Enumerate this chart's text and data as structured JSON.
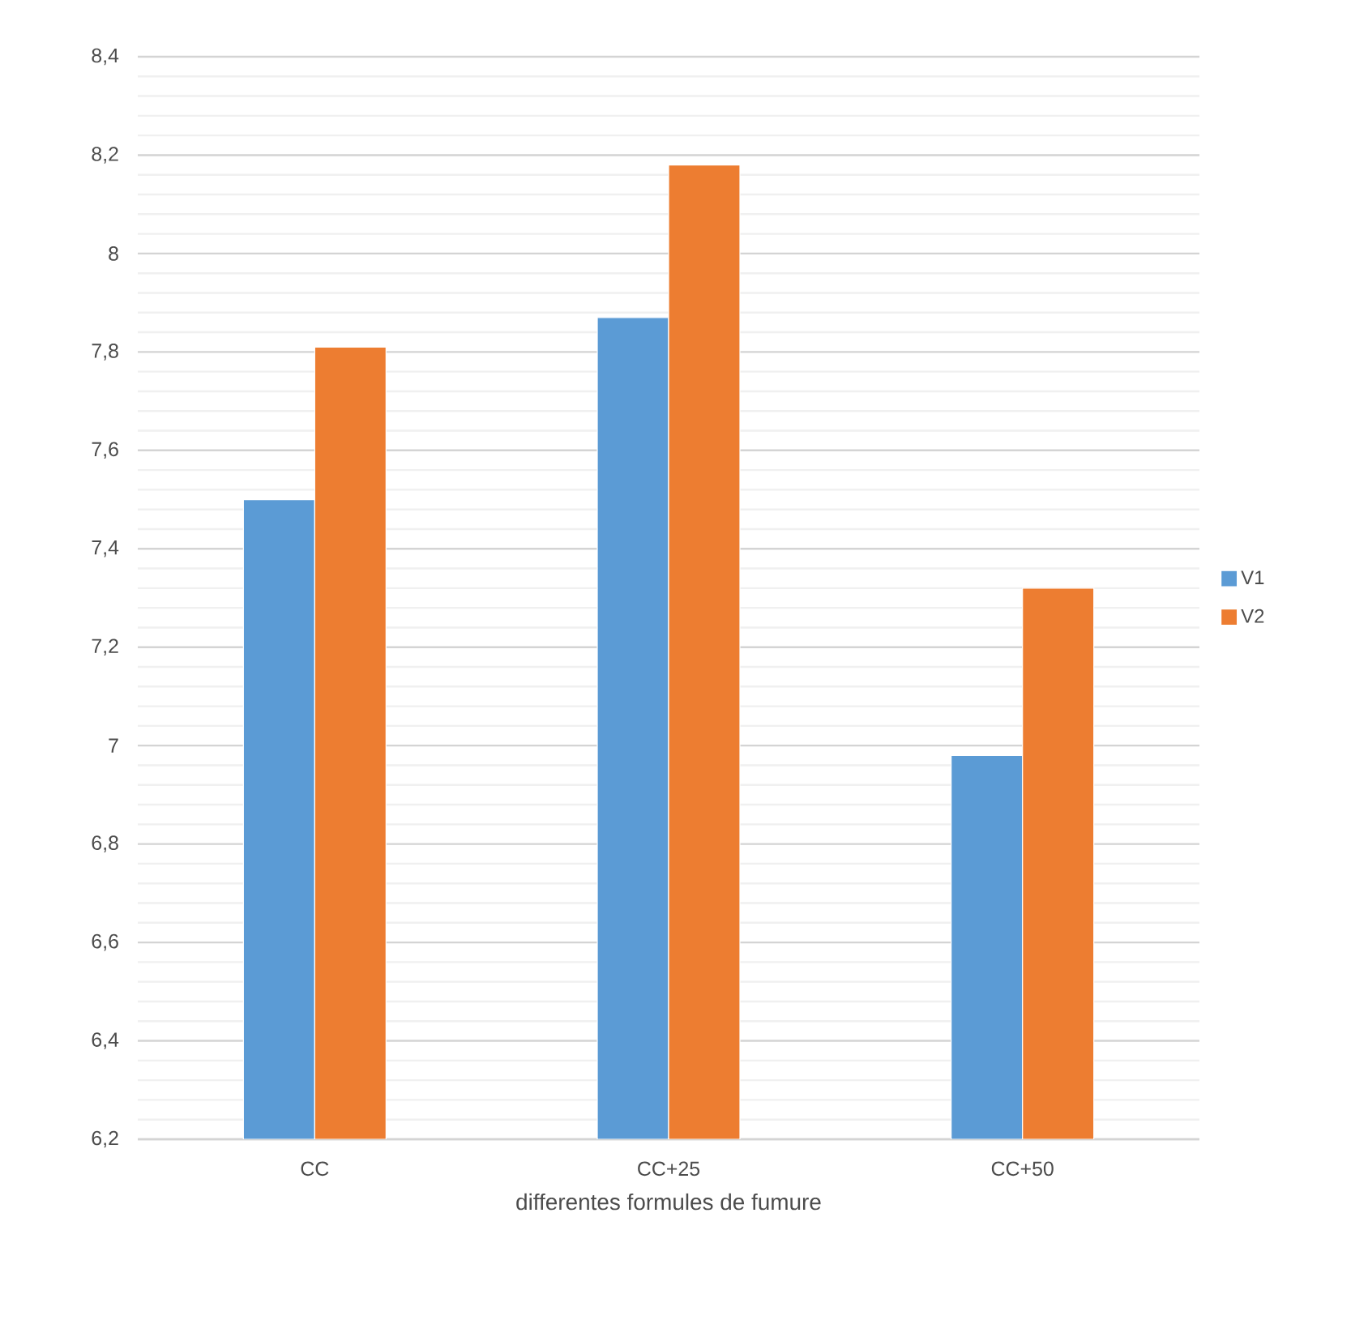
{
  "chart_data": {
    "type": "bar",
    "xlabel": "differentes formules de fumure",
    "categories": [
      "CC",
      "CC+25",
      "CC+50"
    ],
    "series": [
      {
        "name": "V1",
        "color": "#5b9bd5",
        "values": [
          7.5,
          7.87,
          6.98
        ]
      },
      {
        "name": "V2",
        "color": "#ed7d31",
        "values": [
          7.81,
          8.18,
          7.32
        ]
      }
    ],
    "ylim": [
      6.2,
      8.4
    ],
    "yticks": [
      {
        "value": 6.2,
        "label": "6,2"
      },
      {
        "value": 6.4,
        "label": "6,4"
      },
      {
        "value": 6.6,
        "label": "6,6"
      },
      {
        "value": 6.8,
        "label": "6,8"
      },
      7,
      {
        "value": 7.2,
        "label": "7,2"
      },
      {
        "value": 7.4,
        "label": "7,4"
      },
      {
        "value": 7.6,
        "label": "7,6"
      },
      {
        "value": 7.8,
        "label": "7,8"
      },
      8,
      {
        "value": 8.2,
        "label": "8,2"
      },
      {
        "value": 8.4,
        "label": "8,4"
      }
    ],
    "grid": "y",
    "legend": "right"
  }
}
